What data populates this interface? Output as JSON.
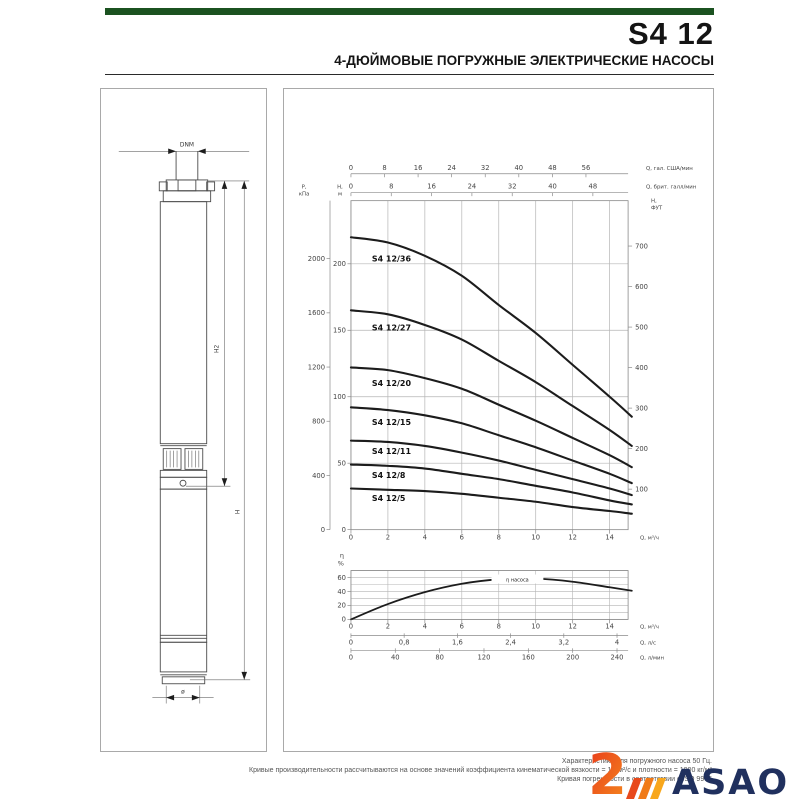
{
  "header": {
    "model": "S4 12",
    "subtitle": "4-ДЮЙМОВЫЕ ПОГРУЖНЫЕ ЭЛЕКТРИЧЕСКИЕ НАСОСЫ"
  },
  "drawing": {
    "dnm": "DNM",
    "h2": "H2",
    "h": "H",
    "d": "ø"
  },
  "chart_data": [
    {
      "type": "line",
      "title": "",
      "x": [
        0,
        2,
        4,
        6,
        8,
        10,
        12,
        14,
        15.2
      ],
      "series": [
        {
          "name": "S4 12/36",
          "values": [
            220,
            216,
            206,
            191,
            169,
            148,
            124,
            100,
            85
          ]
        },
        {
          "name": "S4 12/27",
          "values": [
            165,
            162,
            154,
            143,
            127,
            111,
            93,
            75,
            63
          ]
        },
        {
          "name": "S4 12/20",
          "values": [
            122,
            120,
            114,
            106,
            94,
            82,
            69,
            56,
            47
          ]
        },
        {
          "name": "S4 12/15",
          "values": [
            92,
            90,
            86,
            80,
            71,
            62,
            52,
            42,
            35
          ]
        },
        {
          "name": "S4 12/11",
          "values": [
            67,
            66,
            63,
            58,
            52,
            45,
            38,
            31,
            26
          ]
        },
        {
          "name": "S4 12/8",
          "values": [
            49,
            48,
            46,
            42,
            38,
            33,
            28,
            22,
            19
          ]
        },
        {
          "name": "S4 12/5",
          "values": [
            31,
            30,
            29,
            27,
            24,
            21,
            17,
            14,
            12
          ]
        }
      ],
      "x_axes": [
        {
          "label": "Q, гал. США/мин",
          "ticks": [
            0,
            8,
            16,
            24,
            32,
            40,
            48,
            56
          ],
          "to_m3h": 0.22712,
          "position": "top"
        },
        {
          "label": "Q, брит. галл/мин",
          "ticks": [
            0,
            8,
            16,
            24,
            32,
            40,
            48
          ],
          "to_m3h": 0.27277,
          "position": "top"
        },
        {
          "label": "Q, м³/ч",
          "ticks": [
            0,
            2,
            4,
            6,
            8,
            10,
            12,
            14
          ],
          "to_m3h": 1,
          "position": "bottom"
        }
      ],
      "y_axes": [
        {
          "label2": [
            "P,",
            "кПа"
          ],
          "ticks": [
            0,
            400,
            800,
            1200,
            1600,
            2000
          ],
          "unit": "kPa",
          "position": "left"
        },
        {
          "label2": [
            "H,",
            "м"
          ],
          "ticks": [
            0,
            50,
            100,
            150,
            200
          ],
          "unit": "m",
          "position": "left"
        },
        {
          "label2": [
            "H,",
            "ФУТ"
          ],
          "ticks": [
            100,
            200,
            300,
            400,
            500,
            600,
            700
          ],
          "unit": "ft",
          "position": "right"
        }
      ],
      "xlim": [
        0,
        15
      ],
      "ylim_m": [
        0,
        247
      ],
      "grid": true,
      "legend_position": "labels-on-curves"
    },
    {
      "type": "line",
      "ylabel2": [
        "η",
        "%"
      ],
      "y_ticks": [
        0,
        20,
        40,
        60
      ],
      "ylim": [
        0,
        70
      ],
      "curve_label": "η насоса",
      "x": [
        0,
        2,
        4,
        6,
        8,
        10,
        12,
        14,
        15.2
      ],
      "values": [
        0,
        22,
        39,
        51,
        57.5,
        58.5,
        54,
        46,
        41
      ],
      "x_axes": [
        {
          "label": "Q, м³/ч",
          "ticks": [
            "0",
            "2",
            "4",
            "6",
            "8",
            "10",
            "12",
            "14"
          ],
          "vals": [
            0,
            2,
            4,
            6,
            8,
            10,
            12,
            14
          ]
        },
        {
          "label": "Q, л/с",
          "ticks": [
            "0",
            "0,8",
            "1,6",
            "2,4",
            "3,2",
            "4"
          ],
          "vals": [
            0,
            2.88,
            5.76,
            8.64,
            11.52,
            14.4
          ]
        },
        {
          "label": "Q, л/мин",
          "ticks": [
            "0",
            "40",
            "80",
            "120",
            "160",
            "200",
            "240"
          ],
          "vals": [
            0,
            2.4,
            4.8,
            7.2,
            9.6,
            12,
            14.4
          ]
        }
      ],
      "grid": true
    }
  ],
  "footer": {
    "lines": [
      "Характеристики для погружного насоса 50 Гц.",
      "Кривые производительности рассчитываются на основе значений коэффициента кинематической вязкости = 1 мм²/с и плотности = 1000 кг/м³",
      "Кривая погрешности в соответствии с ISO 9906"
    ]
  },
  "logo": {
    "text": "ASAO"
  },
  "colors": {
    "accent_green": "#1b5220",
    "curve": "#1c1c1c",
    "grid": "#b5b5b5",
    "logo_navy": "#20305e",
    "logo_orange": "#e8491b"
  }
}
